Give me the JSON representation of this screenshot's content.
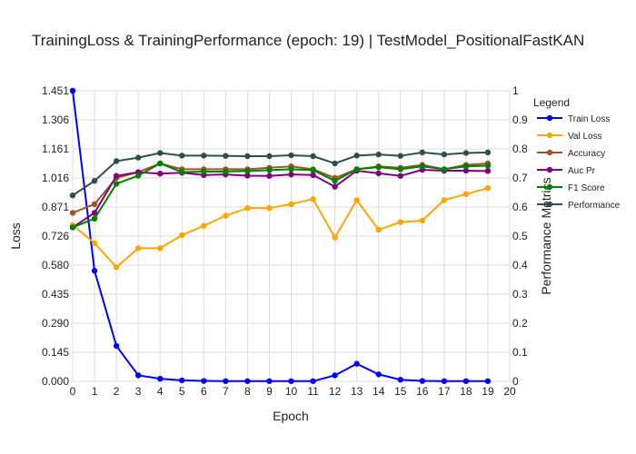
{
  "chart_data": {
    "type": "line",
    "title": "TrainingLoss & TrainingPerformance (epoch: 19) | TestModel_PositionalFastKAN",
    "xlabel": "Epoch",
    "ylabel_left": "Loss",
    "ylabel_right": "Performance Metrics",
    "xlim": [
      0,
      20
    ],
    "ylim_left": [
      0,
      1.451
    ],
    "ylim_right": [
      0,
      1
    ],
    "x_ticks": [
      "0",
      "1",
      "2",
      "3",
      "4",
      "5",
      "6",
      "7",
      "8",
      "9",
      "10",
      "11",
      "12",
      "13",
      "14",
      "15",
      "16",
      "17",
      "18",
      "19",
      "20"
    ],
    "y_left_ticks": [
      "0.000",
      "0.145",
      "0.290",
      "0.435",
      "0.580",
      "0.726",
      "0.871",
      "1.016",
      "1.161",
      "1.306",
      "1.451"
    ],
    "y_right_ticks": [
      "0",
      "0.1",
      "0.2",
      "0.3",
      "0.4",
      "0.5",
      "0.6",
      "0.7",
      "0.8",
      "0.9",
      "1"
    ],
    "grid": true,
    "legend_title": "Legend",
    "legend_position": "top-right",
    "x": [
      0,
      1,
      2,
      3,
      4,
      5,
      6,
      7,
      8,
      9,
      10,
      11,
      12,
      13,
      14,
      15,
      16,
      17,
      18,
      19
    ],
    "series": [
      {
        "name": "Train Loss",
        "axis": "left",
        "color": "#0000ff",
        "values": [
          1.451,
          0.552,
          0.177,
          0.03,
          0.013,
          0.005,
          0.002,
          0.001,
          0.001,
          0.001,
          0.001,
          0.001,
          0.03,
          0.088,
          0.035,
          0.008,
          0.002,
          0.001,
          0.001,
          0.001
        ]
      },
      {
        "name": "Val Loss",
        "axis": "left",
        "color": "#ffa500",
        "values": [
          0.78,
          0.69,
          0.57,
          0.665,
          0.665,
          0.73,
          0.777,
          0.827,
          0.865,
          0.865,
          0.885,
          0.91,
          0.718,
          0.905,
          0.757,
          0.795,
          0.803,
          0.905,
          0.935,
          0.965
        ]
      },
      {
        "name": "Accuracy",
        "axis": "right",
        "color": "#a0522d",
        "values": [
          0.58,
          0.61,
          0.7,
          0.72,
          0.75,
          0.73,
          0.73,
          0.73,
          0.73,
          0.735,
          0.74,
          0.73,
          0.7,
          0.73,
          0.74,
          0.735,
          0.745,
          0.73,
          0.745,
          0.75
        ]
      },
      {
        "name": "Auc Pr",
        "axis": "right",
        "color": "#800080",
        "values": [
          0.53,
          0.58,
          0.707,
          0.72,
          0.715,
          0.718,
          0.71,
          0.712,
          0.708,
          0.707,
          0.712,
          0.71,
          0.67,
          0.725,
          0.716,
          0.707,
          0.728,
          0.725,
          0.725,
          0.724
        ]
      },
      {
        "name": "F1 Score",
        "axis": "right",
        "color": "#008000",
        "values": [
          0.53,
          0.56,
          0.68,
          0.708,
          0.75,
          0.72,
          0.722,
          0.722,
          0.724,
          0.727,
          0.73,
          0.727,
          0.69,
          0.73,
          0.737,
          0.73,
          0.74,
          0.73,
          0.74,
          0.742
        ]
      },
      {
        "name": "Performance",
        "axis": "right",
        "color": "#2f4f4f",
        "values": [
          0.64,
          0.69,
          0.758,
          0.77,
          0.786,
          0.777,
          0.777,
          0.776,
          0.775,
          0.775,
          0.778,
          0.775,
          0.75,
          0.777,
          0.781,
          0.776,
          0.788,
          0.781,
          0.786,
          0.788
        ]
      }
    ]
  }
}
